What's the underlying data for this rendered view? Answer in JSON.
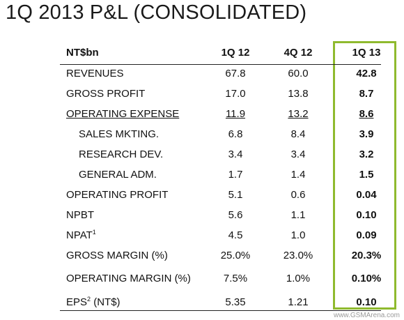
{
  "title": "1Q 2013 P&L (CONSOLIDATED)",
  "header": {
    "label": "NT$bn",
    "col1": "1Q 12",
    "col2": "4Q 12",
    "col3": "1Q 13"
  },
  "rows": [
    {
      "label": "REVENUES",
      "sup": "",
      "suffix": "",
      "v1": "67.8",
      "v2": "60.0",
      "v3": "42.8"
    },
    {
      "label": "GROSS PROFIT",
      "sup": "",
      "suffix": "",
      "v1": "17.0",
      "v2": "13.8",
      "v3": "8.7"
    },
    {
      "label": "OPERATING EXPENSE",
      "sup": "",
      "suffix": "",
      "v1": "11.9",
      "v2": "13.2",
      "v3": "8.6"
    },
    {
      "label": "SALES MKTING.",
      "sup": "",
      "suffix": "",
      "v1": "6.8",
      "v2": "8.4",
      "v3": "3.9"
    },
    {
      "label": "RESEARCH DEV.",
      "sup": "",
      "suffix": "",
      "v1": "3.4",
      "v2": "3.4",
      "v3": "3.2"
    },
    {
      "label": "GENERAL ADM.",
      "sup": "",
      "suffix": "",
      "v1": "1.7",
      "v2": "1.4",
      "v3": "1.5"
    },
    {
      "label": "OPERATING PROFIT",
      "sup": "",
      "suffix": "",
      "v1": "5.1",
      "v2": "0.6",
      "v3": "0.04"
    },
    {
      "label": "NPBT",
      "sup": "",
      "suffix": "",
      "v1": "5.6",
      "v2": "1.1",
      "v3": "0.10"
    },
    {
      "label": "NPAT",
      "sup": "1",
      "suffix": "",
      "v1": "4.5",
      "v2": "1.0",
      "v3": "0.09"
    },
    {
      "label": "GROSS MARGIN (%)",
      "sup": "",
      "suffix": "",
      "v1": "25.0%",
      "v2": "23.0%",
      "v3": "20.3%"
    },
    {
      "label": "OPERATING MARGIN (%)",
      "sup": "",
      "suffix": "",
      "v1": "7.5%",
      "v2": "1.0%",
      "v3": "0.10%"
    },
    {
      "label": "EPS",
      "sup": "2",
      "suffix": " (NT$)",
      "v1": "5.35",
      "v2": "1.21",
      "v3": "0.10"
    }
  ],
  "watermark": "www.GSMArena.com",
  "highlight_color": "#8fba2e"
}
